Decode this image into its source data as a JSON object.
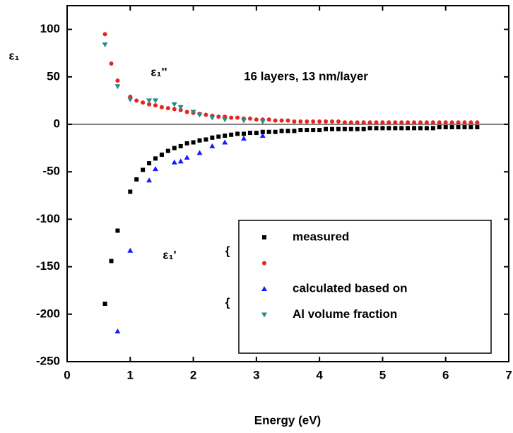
{
  "chart_data": {
    "type": "scatter",
    "xlabel": "Energy (eV)",
    "ylabel": "ε₁",
    "annotations": [
      "ε₁''",
      "ε₁'",
      "16 layers, 13 nm/layer"
    ],
    "xlim": [
      0,
      7
    ],
    "ylim": [
      -250,
      125
    ],
    "xticks": [
      0,
      1,
      2,
      3,
      4,
      5,
      6,
      7
    ],
    "yticks": [
      -250,
      -200,
      -150,
      -100,
      -50,
      0,
      50,
      100
    ],
    "hline": 0,
    "legend": "lower right",
    "series": [
      {
        "name": "measured",
        "color": "#000000",
        "marker": "square",
        "x": [
          0.6,
          0.7,
          0.8,
          1.0,
          1.1,
          1.2,
          1.3,
          1.4,
          1.5,
          1.6,
          1.7,
          1.8,
          1.9,
          2.0,
          2.1,
          2.2,
          2.3,
          2.4,
          2.5,
          2.6,
          2.7,
          2.8,
          2.9,
          3.0,
          3.1,
          3.2,
          3.3,
          3.4,
          3.5,
          3.6,
          3.7,
          3.8,
          3.9,
          4.0,
          4.1,
          4.2,
          4.3,
          4.4,
          4.5,
          4.6,
          4.7,
          4.8,
          4.9,
          5.0,
          5.1,
          5.2,
          5.3,
          5.4,
          5.5,
          5.6,
          5.7,
          5.8,
          5.9,
          6.0,
          6.1,
          6.2,
          6.3,
          6.4,
          6.5
        ],
        "values": [
          -189,
          -144,
          -112,
          -71,
          -58,
          -48,
          -41,
          -36,
          -32,
          -28,
          -25,
          -23,
          -20,
          -19,
          -17,
          -16,
          -14,
          -13,
          -12,
          -11,
          -10,
          -10,
          -9,
          -9,
          -8,
          -8,
          -8,
          -7,
          -7,
          -7,
          -6,
          -6,
          -6,
          -6,
          -5,
          -5,
          -5,
          -5,
          -5,
          -5,
          -5,
          -4,
          -4,
          -4,
          -4,
          -4,
          -4,
          -4,
          -4,
          -4,
          -4,
          -4,
          -3,
          -3,
          -3,
          -3,
          -3,
          -3,
          -3
        ]
      },
      {
        "color": "#e8251c",
        "marker": "circle",
        "x": [
          0.6,
          0.7,
          0.8,
          1.0,
          1.1,
          1.2,
          1.3,
          1.4,
          1.5,
          1.6,
          1.7,
          1.8,
          1.9,
          2.0,
          2.1,
          2.2,
          2.3,
          2.4,
          2.5,
          2.6,
          2.7,
          2.8,
          2.9,
          3.0,
          3.1,
          3.2,
          3.3,
          3.4,
          3.5,
          3.6,
          3.7,
          3.8,
          3.9,
          4.0,
          4.1,
          4.2,
          4.3,
          4.4,
          4.5,
          4.6,
          4.7,
          4.8,
          4.9,
          5.0,
          5.1,
          5.2,
          5.3,
          5.4,
          5.5,
          5.6,
          5.7,
          5.8,
          5.9,
          6.0,
          6.1,
          6.2,
          6.3,
          6.4,
          6.5
        ],
        "values": [
          95,
          64,
          46,
          29,
          25,
          23,
          21,
          20,
          18,
          17,
          16,
          15,
          13,
          12,
          11,
          10,
          9,
          8,
          8,
          7,
          7,
          6,
          6,
          5,
          5,
          5,
          4,
          4,
          4,
          3,
          3,
          3,
          3,
          3,
          3,
          3,
          3,
          2,
          2,
          2,
          2,
          2,
          2,
          2,
          2,
          2,
          2,
          2,
          2,
          2,
          2,
          2,
          2,
          2,
          2,
          2,
          2,
          2,
          2
        ]
      },
      {
        "name": "calculated based on",
        "color": "#1a1aff",
        "marker": "triangle-up",
        "x": [
          0.8,
          1.0,
          1.3,
          1.4,
          1.7,
          1.8,
          1.9,
          2.1,
          2.3,
          2.5,
          2.8,
          3.1
        ],
        "values": [
          -218,
          -133,
          -59,
          -47,
          -40,
          -39,
          -35,
          -30,
          -23,
          -19,
          -15,
          -12
        ]
      },
      {
        "name": "Al volume fraction",
        "color": "#2a8a8a",
        "marker": "triangle-down",
        "x": [
          0.6,
          0.8,
          1.0,
          1.3,
          1.4,
          1.7,
          1.8,
          2.0,
          2.1,
          2.3,
          2.5,
          2.8,
          3.1
        ],
        "values": [
          84,
          40,
          26,
          25,
          25,
          21,
          18,
          13,
          10,
          7,
          5,
          4,
          3
        ]
      }
    ]
  }
}
